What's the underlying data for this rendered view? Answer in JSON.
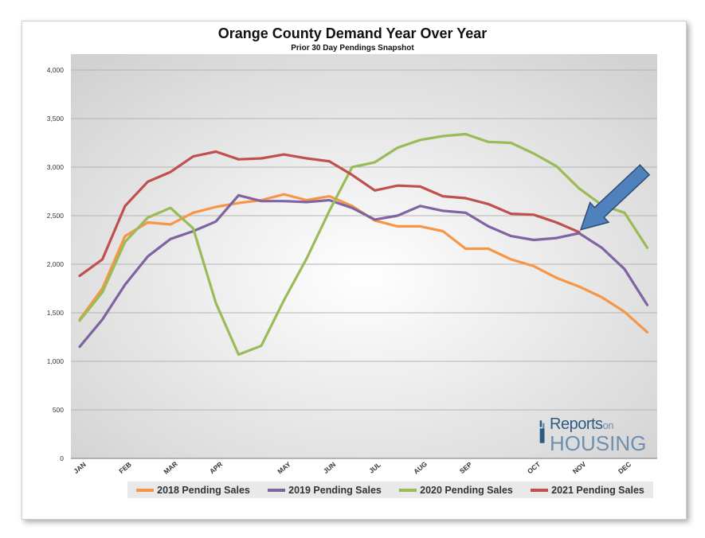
{
  "header": {
    "title": "Orange County Demand Year Over Year",
    "subtitle": "Prior 30 Day Pendings Snapshot"
  },
  "logo": {
    "line1": "Reports",
    "line1_small": "on",
    "line2": "HOUSING"
  },
  "colors": {
    "s2018": "#f79646",
    "s2019": "#8064a2",
    "s2020": "#9bbb59",
    "s2021": "#c0504d",
    "arrow": "#4f81bd"
  },
  "chart_data": {
    "type": "line",
    "title": "Orange County Demand Year Over Year",
    "subtitle": "Prior 30 Day Pendings Snapshot",
    "xlabel": "",
    "ylabel": "",
    "ylim": [
      0,
      4000
    ],
    "yticks": [
      "0",
      "500",
      "1,000",
      "1,500",
      "2,000",
      "2,500",
      "3,000",
      "3,500",
      "4,000"
    ],
    "ytick_values": [
      0,
      500,
      1000,
      1500,
      2000,
      2500,
      3000,
      3500,
      4000
    ],
    "month_labels": [
      "JAN",
      "FEB",
      "MAR",
      "APR",
      "MAY",
      "JUN",
      "JUL",
      "AUG",
      "SEP",
      "OCT",
      "NOV",
      "DEC"
    ],
    "month_label_index": [
      0,
      2,
      4,
      6,
      9,
      11,
      13,
      15,
      17,
      20,
      22,
      24
    ],
    "points_per_series": 26,
    "grid": true,
    "legend_position": "bottom",
    "series": [
      {
        "name": "2018 Pending Sales",
        "color_key": "s2018",
        "values": [
          1430,
          1750,
          2290,
          2430,
          2410,
          2530,
          2590,
          2630,
          2660,
          2720,
          2660,
          2700,
          2600,
          2450,
          2390,
          2390,
          2340,
          2160,
          2160,
          2050,
          1980,
          1860,
          1770,
          1660,
          1510,
          1300
        ]
      },
      {
        "name": "2019 Pending Sales",
        "color_key": "s2019",
        "values": [
          1150,
          1430,
          1790,
          2080,
          2260,
          2340,
          2440,
          2710,
          2650,
          2650,
          2640,
          2660,
          2580,
          2460,
          2500,
          2600,
          2550,
          2530,
          2390,
          2290,
          2250,
          2270,
          2320,
          2170,
          1950,
          1580
        ]
      },
      {
        "name": "2020 Pending Sales",
        "color_key": "s2020",
        "values": [
          1420,
          1710,
          2230,
          2480,
          2580,
          2370,
          1600,
          1070,
          1160,
          1630,
          2060,
          2550,
          3000,
          3050,
          3200,
          3280,
          3320,
          3340,
          3260,
          3250,
          3140,
          3010,
          2780,
          2610,
          2530,
          2170
        ]
      },
      {
        "name": "2021 Pending Sales",
        "color_key": "s2021",
        "values": [
          1880,
          2050,
          2600,
          2850,
          2950,
          3110,
          3160,
          3080,
          3090,
          3130,
          3090,
          3060,
          2920,
          2760,
          2810,
          2800,
          2700,
          2680,
          2620,
          2520,
          2510,
          2430,
          2330
        ]
      }
    ],
    "annotation": {
      "type": "arrow",
      "points_to_series": "2021 Pending Sales",
      "points_to_index": 22
    }
  }
}
